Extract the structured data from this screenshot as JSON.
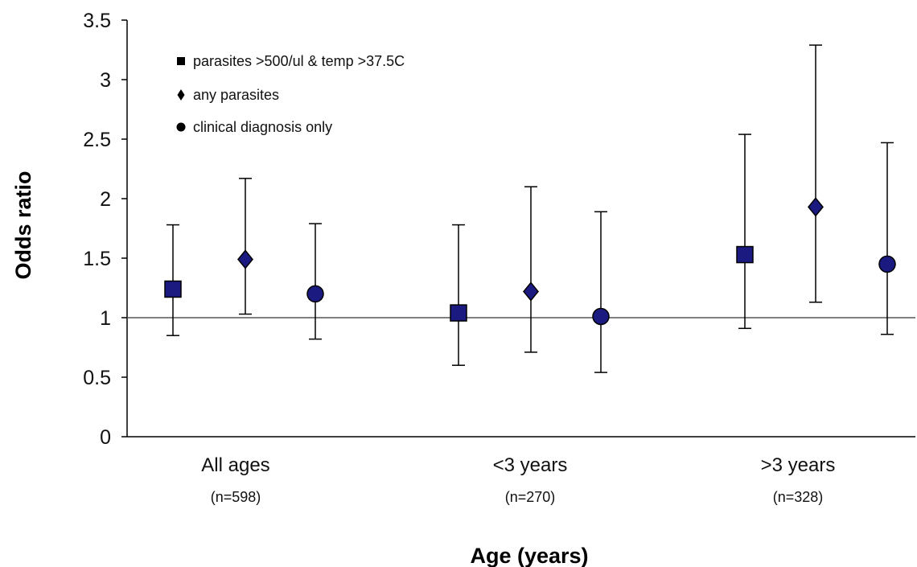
{
  "chart_data": {
    "type": "scatter",
    "title": "",
    "xlabel": "Age (years)",
    "ylabel": "Odds ratio",
    "ylim": [
      0,
      3.5
    ],
    "yticks": [
      "0",
      "0.5",
      "1",
      "1.5",
      "2",
      "2.5",
      "3",
      "3.5"
    ],
    "reference_line": 1,
    "grid": false,
    "legend_position": "top-left",
    "categories": [
      {
        "label": "All ages",
        "n": "(n=598)"
      },
      {
        "label": "<3 years",
        "n": "(n=270)"
      },
      {
        "label": ">3 years",
        "n": "(n=328)"
      }
    ],
    "series": [
      {
        "name": "parasites >500/ul & temp >37.5C",
        "marker": "square",
        "points": [
          {
            "value": 1.24,
            "lower": 0.85,
            "upper": 1.78
          },
          {
            "value": 1.04,
            "lower": 0.6,
            "upper": 1.78
          },
          {
            "value": 1.53,
            "lower": 0.91,
            "upper": 2.54
          }
        ]
      },
      {
        "name": "any parasites",
        "marker": "diamond",
        "points": [
          {
            "value": 1.49,
            "lower": 1.03,
            "upper": 2.17
          },
          {
            "value": 1.22,
            "lower": 0.71,
            "upper": 2.1
          },
          {
            "value": 1.93,
            "lower": 1.13,
            "upper": 3.29
          }
        ]
      },
      {
        "name": "clinical diagnosis only",
        "marker": "circle",
        "points": [
          {
            "value": 1.2,
            "lower": 0.82,
            "upper": 1.79
          },
          {
            "value": 1.01,
            "lower": 0.54,
            "upper": 1.89
          },
          {
            "value": 1.45,
            "lower": 0.86,
            "upper": 2.47
          }
        ]
      }
    ],
    "colors": {
      "marker_fill": "#1a1a80",
      "marker_stroke": "#000000",
      "line": "#000000"
    }
  }
}
